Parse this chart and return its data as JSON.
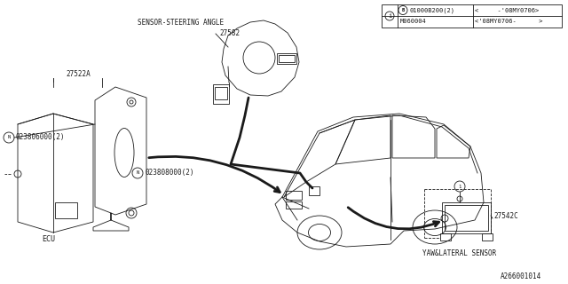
{
  "bg_color": "#ffffff",
  "line_color": "#1a1a1a",
  "fig_width": 6.4,
  "fig_height": 3.2,
  "dpi": 100,
  "labels": {
    "sensor_steering": "SENSOR-STEERING ANGLE",
    "sensor_num": "27582",
    "ecu_label": "27522A",
    "ecu_text": "ECU",
    "bolt1_label": "023806000(2)",
    "bolt2_label": "023808000(2)",
    "yaw_label": "27542C",
    "yaw_text": "YAW&LATERAL SENSOR",
    "diagram_id": "A266001014",
    "table_row1_col1": "01000B200(2)",
    "table_row1_col2": "<     -'08MY0706>",
    "table_row2_col1": "M060004",
    "table_row2_col2": "<'08MY0706-      >"
  }
}
